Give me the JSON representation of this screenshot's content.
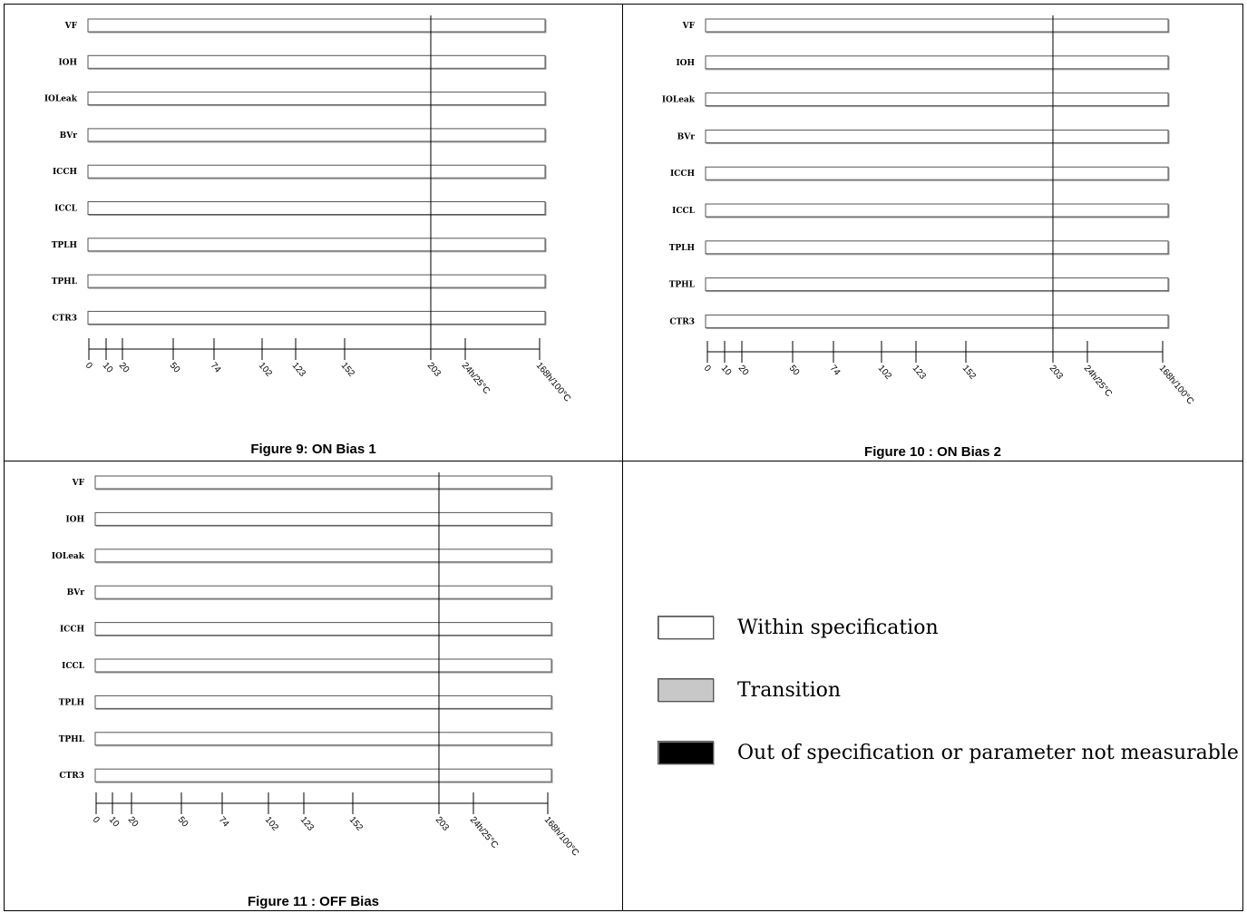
{
  "chart_data": [
    {
      "type": "timeline",
      "title": "Figure 9: ON Bias 1",
      "parameters": [
        "VF",
        "IOH",
        "IOLeak",
        "BVr",
        "ICCH",
        "ICCL",
        "TPLH",
        "TPHL",
        "CTR3"
      ],
      "x_ticks": [
        "0",
        "10",
        "20",
        "50",
        "74",
        "102",
        "123",
        "152",
        "203",
        "24h/25°C",
        "168h/100°C"
      ],
      "marker": "203",
      "status": [
        "within",
        "within",
        "within",
        "within",
        "within",
        "within",
        "within",
        "within",
        "within"
      ]
    },
    {
      "type": "timeline",
      "title": "Figure 10 : ON Bias 2",
      "parameters": [
        "VF",
        "IOH",
        "IOLeak",
        "BVr",
        "ICCH",
        "ICCL",
        "TPLH",
        "TPHL",
        "CTR3"
      ],
      "x_ticks": [
        "0",
        "10",
        "20",
        "50",
        "74",
        "102",
        "123",
        "152",
        "203",
        "24h/25°C",
        "168h/100°C"
      ],
      "marker": "203",
      "status": [
        "within",
        "within",
        "within",
        "within",
        "within",
        "within",
        "within",
        "within",
        "within"
      ]
    },
    {
      "type": "timeline",
      "title": "Figure 11 : OFF Bias",
      "parameters": [
        "VF",
        "IOH",
        "IOLeak",
        "BVr",
        "ICCH",
        "ICCL",
        "TPLH",
        "TPHL",
        "CTR3"
      ],
      "x_ticks": [
        "0",
        "10",
        "20",
        "50",
        "74",
        "102",
        "123",
        "152",
        "203",
        "24h/25°C",
        "168h/100°C"
      ],
      "marker": "203",
      "status": [
        "within",
        "within",
        "within",
        "within",
        "within",
        "within",
        "within",
        "within",
        "within"
      ]
    }
  ],
  "legend": [
    {
      "label": "Within specification",
      "color": "#ffffff"
    },
    {
      "label": "Transition",
      "color": "#c8c8c8"
    },
    {
      "label": "Out of specification or parameter not measurable",
      "color": "#000000"
    }
  ]
}
